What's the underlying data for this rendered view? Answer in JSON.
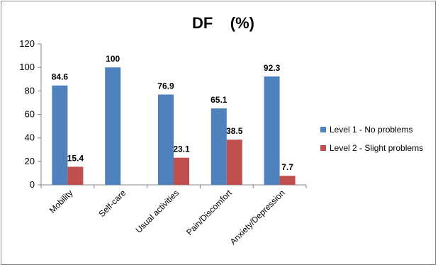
{
  "chart_data": {
    "type": "bar",
    "title": "DF    (%)",
    "categories": [
      "Mobility",
      "Self-care",
      "Usual activities",
      "Pain/Discomfort",
      "Anxiety/Depression"
    ],
    "series": [
      {
        "name": "Level 1 - No problems",
        "color": "#4F81BD",
        "values": [
          84.6,
          100,
          76.9,
          65.1,
          92.3
        ]
      },
      {
        "name": "Level 2 - Slight problems",
        "color": "#C0504D",
        "values": [
          15.4,
          null,
          23.1,
          38.5,
          7.7
        ]
      }
    ],
    "ylim": [
      0,
      120
    ],
    "yticks": [
      "0",
      "20",
      "40",
      "60",
      "80",
      "100",
      "120"
    ],
    "xlabel": "",
    "ylabel": "",
    "grid": false,
    "legend_position": "right"
  }
}
